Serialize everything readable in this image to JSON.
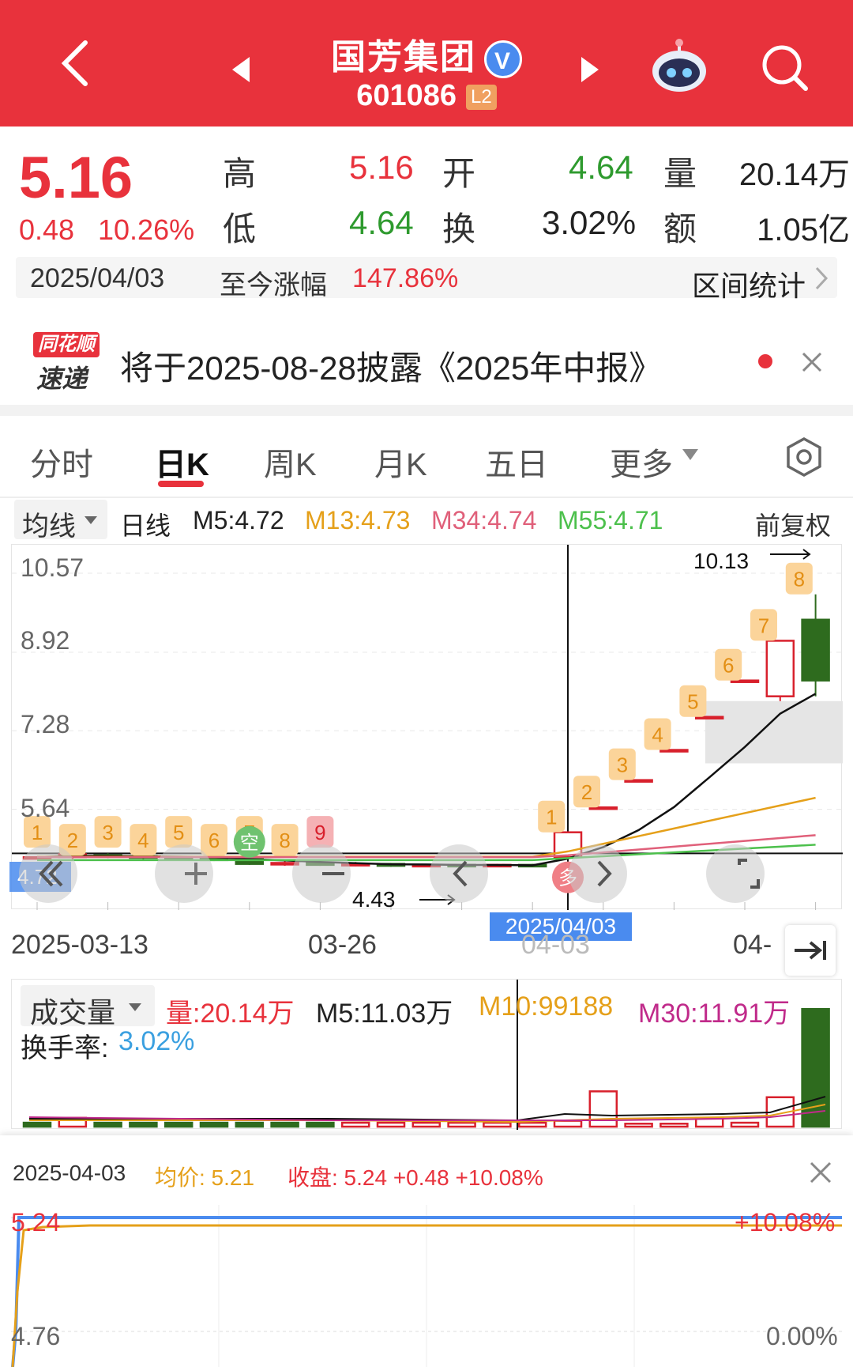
{
  "header": {
    "title": "国芳集团",
    "code": "601086",
    "level": "L2",
    "verified": "V"
  },
  "quote": {
    "price": "5.16",
    "change": "0.48",
    "change_pct": "10.26%",
    "high_label": "高",
    "high": "5.16",
    "open_label": "开",
    "open": "4.64",
    "volume_label": "量",
    "volume": "20.14万",
    "low_label": "低",
    "low": "4.64",
    "turnover_label": "换",
    "turnover": "3.02%",
    "amount_label": "额",
    "amount": "1.05亿"
  },
  "range_bar": {
    "date": "2025/04/03",
    "label": "至今涨幅",
    "value": "147.86%",
    "link": "区间统计"
  },
  "notice": {
    "logo_top": "同花顺",
    "logo_bottom": "速递",
    "text": "将于2025-08-28披露《2025年中报》"
  },
  "tabs": [
    "分时",
    "日K",
    "周K",
    "月K",
    "五日",
    "更多"
  ],
  "active_tab": "日K",
  "ma_bar": {
    "selector": "均线",
    "period": "日线",
    "m5": "M5:4.72",
    "m13": "M13:4.73",
    "m34": "M34:4.74",
    "m55": "M55:4.71",
    "adjust": "前复权"
  },
  "kline": {
    "y_labels": [
      "10.57",
      "8.92",
      "7.28",
      "5.64"
    ],
    "max_label": "10.13",
    "min_label": "4.43",
    "cursor_date": "2025/04/03",
    "x_labels": [
      "2025-03-13",
      "03-26",
      "04-03",
      "04-"
    ],
    "left_price_tag": "4.72"
  },
  "chart_data": {
    "type": "candlestick",
    "dates_shown": [
      "2025-03-13",
      "03-26",
      "04-03"
    ],
    "candles": [
      {
        "o": 4.62,
        "c": 4.64,
        "h": 4.66,
        "l": 4.6
      },
      {
        "o": 4.64,
        "c": 4.7,
        "h": 4.72,
        "l": 4.6
      },
      {
        "o": 4.68,
        "c": 4.66,
        "h": 4.72,
        "l": 4.62
      },
      {
        "o": 4.66,
        "c": 4.64,
        "h": 4.68,
        "l": 4.6
      },
      {
        "o": 4.64,
        "c": 4.62,
        "h": 4.66,
        "l": 4.58
      },
      {
        "o": 4.62,
        "c": 4.58,
        "h": 4.66,
        "l": 4.56
      },
      {
        "o": 4.6,
        "c": 4.5,
        "h": 4.62,
        "l": 4.48
      },
      {
        "o": 4.5,
        "c": 4.52,
        "h": 4.56,
        "l": 4.46
      },
      {
        "o": 4.52,
        "c": 4.48,
        "h": 4.56,
        "l": 4.46
      },
      {
        "o": 4.48,
        "c": 4.5,
        "h": 4.54,
        "l": 4.45
      },
      {
        "o": 4.5,
        "c": 4.46,
        "h": 4.52,
        "l": 4.44
      },
      {
        "o": 4.46,
        "c": 4.48,
        "h": 4.5,
        "l": 4.43
      },
      {
        "o": 4.48,
        "c": 4.47,
        "h": 4.5,
        "l": 4.44
      },
      {
        "o": 4.47,
        "c": 4.48,
        "h": 4.5,
        "l": 4.44
      },
      {
        "o": 4.48,
        "c": 4.46,
        "h": 4.5,
        "l": 4.44
      },
      {
        "o": 4.64,
        "c": 5.16,
        "h": 5.16,
        "l": 4.64
      },
      {
        "o": 5.68,
        "c": 5.68,
        "h": 5.68,
        "l": 5.68
      },
      {
        "o": 6.25,
        "c": 6.25,
        "h": 6.25,
        "l": 6.25
      },
      {
        "o": 6.88,
        "c": 6.88,
        "h": 6.88,
        "l": 6.88
      },
      {
        "o": 7.57,
        "c": 7.57,
        "h": 7.57,
        "l": 7.57
      },
      {
        "o": 8.33,
        "c": 8.33,
        "h": 8.33,
        "l": 8.33
      },
      {
        "o": 8.0,
        "c": 9.16,
        "h": 9.16,
        "l": 7.9
      },
      {
        "o": 9.6,
        "c": 8.33,
        "h": 10.13,
        "l": 8.0
      }
    ],
    "markers_top": [
      "1",
      "2",
      "3",
      "4",
      "5",
      "6",
      "7",
      "8",
      "9",
      "1",
      "2",
      "3",
      "4",
      "5",
      "6",
      "7",
      "8"
    ],
    "markers_special": [
      "空",
      "多"
    ],
    "volume": {
      "label": "成交量",
      "value": "量:20.14万",
      "m5": "M5:11.03万",
      "m10": "M10:99188",
      "m30": "M30:11.91万",
      "turnover_label": "换手率:",
      "turnover": "3.02%"
    }
  },
  "bottom": {
    "date": "2025-04-03",
    "avg_label": "均价: 5.21",
    "close_label": "收盘: 5.24 +0.48 +10.08%",
    "top_left": "5.24",
    "top_right": "+10.08%",
    "bottom_left": "4.76",
    "bottom_right": "0.00%"
  },
  "colors": {
    "brand_red": "#e8323c",
    "down_green": "#2e6b1e",
    "m13": "#e5a01a",
    "m34": "#e0607a",
    "m55": "#4cc04c"
  }
}
